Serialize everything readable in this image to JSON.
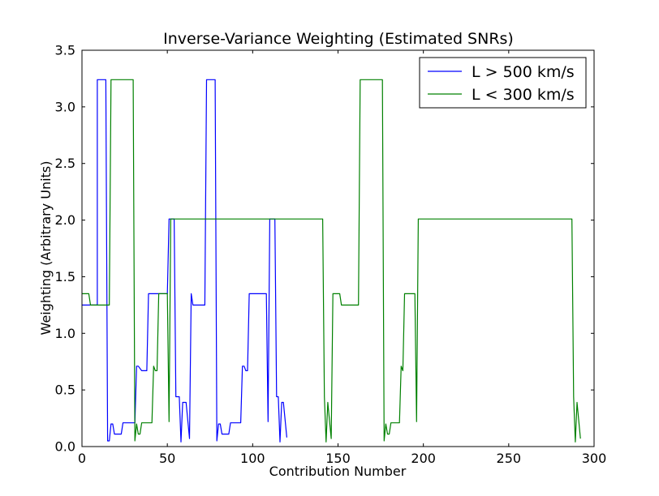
{
  "chart_data": {
    "type": "line",
    "title": "Inverse-Variance Weighting (Estimated SNRs)",
    "xlabel": "Contribution Number",
    "ylabel": "Weighting (Arbitrary Units)",
    "xlim": [
      0,
      300
    ],
    "ylim": [
      0,
      3.5
    ],
    "xticks": [
      "0",
      "50",
      "100",
      "150",
      "200",
      "250",
      "300"
    ],
    "yticks": [
      "0.0",
      "0.5",
      "1.0",
      "1.5",
      "2.0",
      "2.5",
      "3.0",
      "3.5"
    ],
    "grid": false,
    "legend_position": "top-right",
    "series": [
      {
        "name": "L > 500 km/s",
        "color": "#0000ff",
        "points": [
          [
            0,
            1.25
          ],
          [
            9,
            1.25
          ],
          [
            9,
            3.24
          ],
          [
            14,
            3.24
          ],
          [
            15,
            0.05
          ],
          [
            16,
            0.05
          ],
          [
            17,
            0.2
          ],
          [
            18,
            0.2
          ],
          [
            19,
            0.11
          ],
          [
            23,
            0.11
          ],
          [
            24,
            0.21
          ],
          [
            31,
            0.21
          ],
          [
            32,
            0.71
          ],
          [
            33,
            0.71
          ],
          [
            35,
            0.67
          ],
          [
            38,
            0.67
          ],
          [
            39,
            1.35
          ],
          [
            50,
            1.35
          ],
          [
            51,
            2.01
          ],
          [
            54,
            2.01
          ],
          [
            55,
            0.44
          ],
          [
            57,
            0.44
          ],
          [
            58,
            0.04
          ],
          [
            59,
            0.39
          ],
          [
            61,
            0.39
          ],
          [
            63,
            0.07
          ],
          [
            64,
            1.35
          ],
          [
            65,
            1.25
          ],
          [
            72,
            1.25
          ],
          [
            73,
            3.24
          ],
          [
            78,
            3.24
          ],
          [
            79,
            0.05
          ],
          [
            80,
            0.2
          ],
          [
            81,
            0.2
          ],
          [
            82,
            0.11
          ],
          [
            86,
            0.11
          ],
          [
            87,
            0.21
          ],
          [
            93,
            0.21
          ],
          [
            94,
            0.71
          ],
          [
            95,
            0.71
          ],
          [
            96,
            0.67
          ],
          [
            97,
            0.67
          ],
          [
            98,
            1.35
          ],
          [
            108,
            1.35
          ],
          [
            109,
            0.22
          ],
          [
            110,
            2.01
          ],
          [
            113,
            2.01
          ],
          [
            114,
            0.44
          ],
          [
            115,
            0.44
          ],
          [
            116,
            0.04
          ],
          [
            117,
            0.39
          ],
          [
            118,
            0.39
          ],
          [
            120,
            0.08
          ]
        ]
      },
      {
        "name": "L < 300 km/s",
        "color": "#008000",
        "points": [
          [
            0,
            1.35
          ],
          [
            4,
            1.35
          ],
          [
            5,
            1.25
          ],
          [
            16,
            1.25
          ],
          [
            17,
            3.24
          ],
          [
            30,
            3.24
          ],
          [
            31,
            0.05
          ],
          [
            32,
            0.2
          ],
          [
            33,
            0.11
          ],
          [
            34,
            0.11
          ],
          [
            35,
            0.21
          ],
          [
            41,
            0.21
          ],
          [
            42,
            0.71
          ],
          [
            43,
            0.67
          ],
          [
            44,
            0.67
          ],
          [
            45,
            1.35
          ],
          [
            50,
            1.35
          ],
          [
            51,
            0.22
          ],
          [
            52,
            2.01
          ],
          [
            141,
            2.01
          ],
          [
            142,
            0.44
          ],
          [
            143,
            0.04
          ],
          [
            144,
            0.39
          ],
          [
            146,
            0.07
          ],
          [
            147,
            1.35
          ],
          [
            151,
            1.35
          ],
          [
            152,
            1.25
          ],
          [
            162,
            1.25
          ],
          [
            163,
            3.24
          ],
          [
            176,
            3.24
          ],
          [
            177,
            0.05
          ],
          [
            178,
            0.2
          ],
          [
            179,
            0.11
          ],
          [
            180,
            0.11
          ],
          [
            181,
            0.21
          ],
          [
            186,
            0.21
          ],
          [
            187,
            0.71
          ],
          [
            188,
            0.67
          ],
          [
            189,
            1.35
          ],
          [
            195,
            1.35
          ],
          [
            196,
            0.22
          ],
          [
            197,
            2.01
          ],
          [
            287,
            2.01
          ],
          [
            288,
            0.44
          ],
          [
            289,
            0.04
          ],
          [
            290,
            0.39
          ],
          [
            292,
            0.07
          ]
        ]
      }
    ]
  }
}
